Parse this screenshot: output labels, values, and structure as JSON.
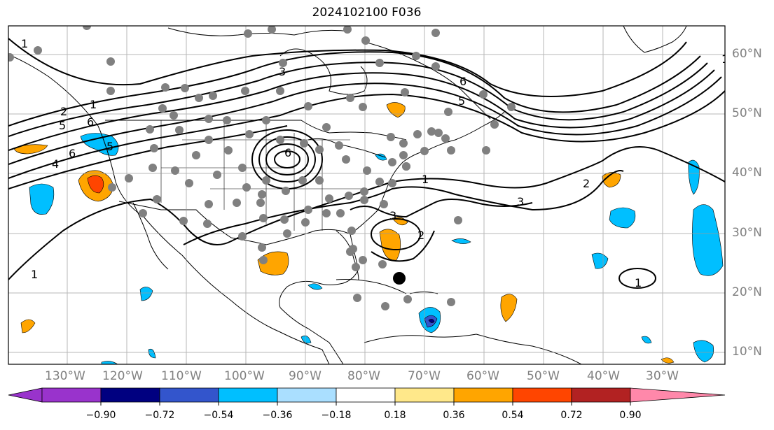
{
  "title": "2024102100 F036",
  "longitude_labels": [
    "130°W",
    "120°W",
    "110°W",
    "100°W",
    "90°W",
    "80°W",
    "70°W",
    "60°W",
    "50°W",
    "40°W",
    "30°W"
  ],
  "latitude_labels": [
    "60°N",
    "50°N",
    "40°N",
    "30°N",
    "20°N",
    "10°N"
  ],
  "contour_labels": [
    "1",
    "2",
    "3",
    "4",
    "5",
    "6"
  ],
  "colorbar": {
    "tick_labels": [
      "−0.90",
      "−0.72",
      "−0.54",
      "−0.36",
      "−0.18",
      "0.18",
      "0.36",
      "0.54",
      "0.72",
      "0.90"
    ],
    "colors": [
      "#9933cc",
      "#000080",
      "#3355cc",
      "#00bfff",
      "#aadfff",
      "#ffffff",
      "#ffe88a",
      "#ffa500",
      "#ff4500",
      "#b22222",
      "#ff88aa"
    ],
    "extend": "both"
  },
  "grid": true,
  "marker_colors": {
    "stations": "#808080",
    "storm_center": "#000000"
  }
}
